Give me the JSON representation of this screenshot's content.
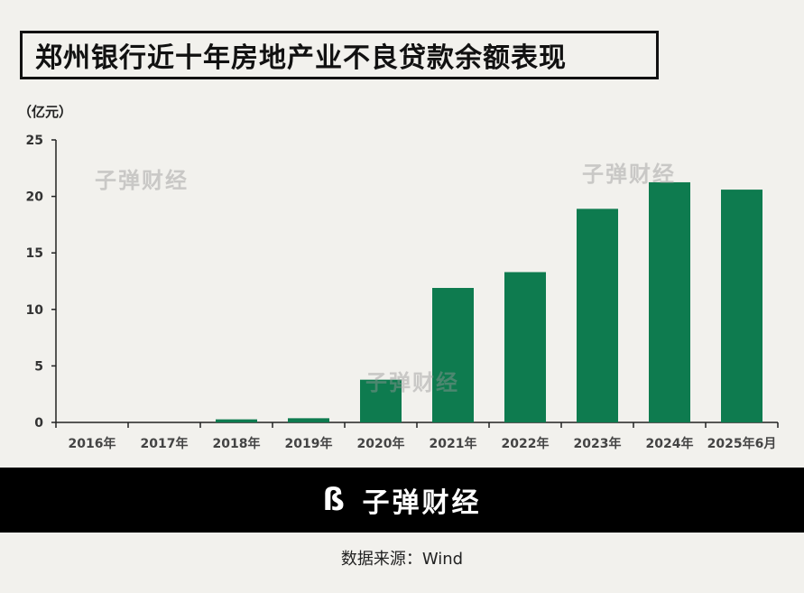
{
  "title": "郑州银行近十年房地产业不良贷款余额表现",
  "unit_label": "（亿元）",
  "watermark": "子弹财经",
  "footer_brand": "子弹财经",
  "source": "数据来源：Wind",
  "colors": {
    "bar": "#0e7b4f",
    "background": "#f2f1ed",
    "footer": "#000000"
  },
  "chart_data": {
    "type": "bar",
    "title": "郑州银行近十年房地产业不良贷款余额表现",
    "ylabel": "（亿元）",
    "xlabel": "",
    "categories": [
      "2016年",
      "2017年",
      "2018年",
      "2019年",
      "2020年",
      "2021年",
      "2022年",
      "2023年",
      "2024年",
      "2025年6月"
    ],
    "values": [
      0,
      0,
      0.27,
      0.37,
      3.78,
      11.9,
      13.3,
      18.9,
      21.25,
      20.6
    ],
    "ylim": [
      0,
      25
    ],
    "yticks": [
      0,
      5,
      10,
      15,
      20,
      25
    ],
    "grid": false,
    "legend": "none"
  }
}
